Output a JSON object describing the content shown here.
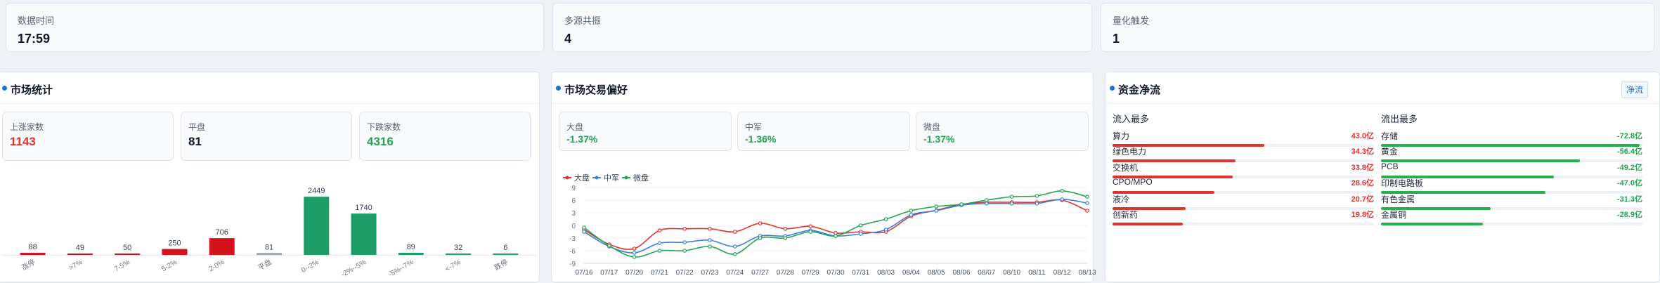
{
  "top_stats": [
    {
      "label": "数据时间",
      "value": "17:59"
    },
    {
      "label": "多源共振",
      "value": "4"
    },
    {
      "label": "量化触发",
      "value": "1"
    }
  ],
  "market_stats": {
    "title": "市场统计",
    "cards": [
      {
        "label": "上涨家数",
        "value": "1143"
      },
      {
        "label": "平盘",
        "value": "81"
      },
      {
        "label": "下跌家数",
        "value": "4316"
      }
    ]
  },
  "trade_pref": {
    "title": "市场交易偏好",
    "cards": [
      {
        "label": "大盘",
        "value": "-1.37%"
      },
      {
        "label": "中军",
        "value": "-1.36%"
      },
      {
        "label": "微盘",
        "value": "-1.37%"
      }
    ]
  },
  "fund_flow": {
    "title": "资金净流",
    "tag": "净流",
    "inflow_title": "流入最多",
    "outflow_title": "流出最多",
    "inflow": [
      {
        "name": "算力",
        "amount": "43.0亿",
        "ratio": 0.58
      },
      {
        "name": "绿色电力",
        "amount": "34.3亿",
        "ratio": 0.47
      },
      {
        "name": "交换机",
        "amount": "33.8亿",
        "ratio": 0.46
      },
      {
        "name": "CPO/MPO",
        "amount": "28.6亿",
        "ratio": 0.39
      },
      {
        "name": "液冷",
        "amount": "20.7亿",
        "ratio": 0.28
      },
      {
        "name": "创新药",
        "amount": "19.8亿",
        "ratio": 0.27
      }
    ],
    "outflow": [
      {
        "name": "存储",
        "amount": "-72.8亿",
        "ratio": 0.99
      },
      {
        "name": "黄金",
        "amount": "-56.4亿",
        "ratio": 0.76
      },
      {
        "name": "PCB",
        "amount": "-49.2亿",
        "ratio": 0.66
      },
      {
        "name": "印制电路板",
        "amount": "-47.0亿",
        "ratio": 0.63
      },
      {
        "name": "有色金属",
        "amount": "-31.3亿",
        "ratio": 0.42
      },
      {
        "name": "金属铜",
        "amount": "-28.9亿",
        "ratio": 0.39
      }
    ]
  },
  "chart_data": [
    {
      "type": "bar",
      "categories": [
        "涨停",
        ">7%",
        "7-5%",
        "5-2%",
        "2-0%",
        "平盘",
        "0--2%",
        "-2%--5%",
        "-5%--7%",
        "<-7%",
        "跌停"
      ],
      "values": [
        88,
        49,
        50,
        250,
        706,
        81,
        2449,
        1740,
        89,
        32,
        6
      ],
      "colors": [
        "#d6131d",
        "#d6131d",
        "#d6131d",
        "#d6131d",
        "#d6131d",
        "#9aa1a9",
        "#1f9d68",
        "#1f9d68",
        "#1f9d68",
        "#1f9d68",
        "#1f9d68"
      ],
      "ylim": [
        0,
        2600
      ],
      "grid": false
    },
    {
      "type": "line",
      "x": [
        "07/16",
        "07/17",
        "07/20",
        "07/21",
        "07/22",
        "07/23",
        "07/24",
        "07/27",
        "07/28",
        "07/29",
        "07/30",
        "07/31",
        "08/03",
        "08/04",
        "08/05",
        "08/06",
        "08/07",
        "08/10",
        "08/11",
        "08/12",
        "08/13"
      ],
      "xlabels_visible": [
        "07/16",
        "07/17",
        "07/20",
        "07/21",
        "07/22",
        "07/23",
        "07/24",
        "07/27",
        "07/28",
        "07/29",
        "07/30",
        "07/31",
        "08/03",
        "08/04",
        "08/05",
        "08/06",
        "08/07",
        "08/10",
        "08/11",
        "08/12",
        "08/13"
      ],
      "yticks": [
        9,
        6,
        3,
        0,
        -3,
        -6,
        -9
      ],
      "ylim": [
        -9,
        9
      ],
      "legend_position": "top-left",
      "series": [
        {
          "name": "大盘",
          "color": "#e0332f",
          "values": [
            -1,
            -4.5,
            -5.5,
            -1.2,
            -0.8,
            -0.8,
            -1.5,
            0.5,
            -0.8,
            -0.2,
            -1.8,
            -1.5,
            -1.5,
            2.2,
            3.6,
            5.0,
            5.5,
            5.5,
            5.5,
            6.0,
            3.5
          ]
        },
        {
          "name": "中军",
          "color": "#3b7ed8",
          "values": [
            -1.5,
            -5.0,
            -6.5,
            -4.2,
            -4.0,
            -3.5,
            -5.0,
            -2.5,
            -2.5,
            -1.2,
            -2.5,
            -2.0,
            -1.0,
            2.5,
            3.5,
            4.8,
            5.2,
            5.2,
            5.2,
            6.2,
            5.3
          ]
        },
        {
          "name": "微盘",
          "color": "#22a454",
          "values": [
            -0.5,
            -4.8,
            -7.5,
            -6.0,
            -6.0,
            -5.0,
            -6.8,
            -3.0,
            -3.0,
            -1.5,
            -2.5,
            0.0,
            1.5,
            3.5,
            4.5,
            5.0,
            6.0,
            6.8,
            7.0,
            8.2,
            6.8
          ]
        }
      ]
    }
  ]
}
